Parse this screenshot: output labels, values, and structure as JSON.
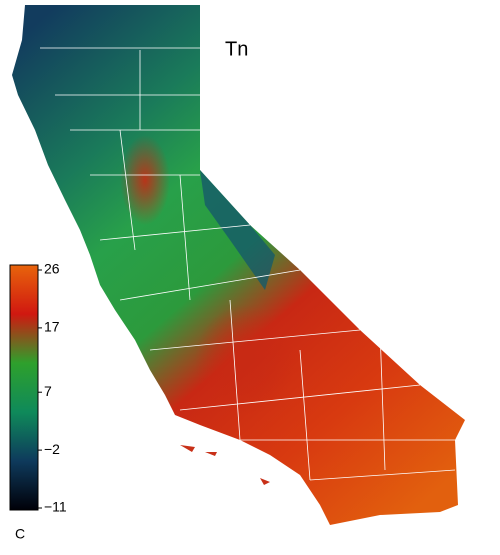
{
  "map": {
    "title": "Tn",
    "colorbar": {
      "unit": "C",
      "lim": [
        -11,
        26
      ],
      "ticks": [
        26,
        17,
        7,
        {
          "value": -2,
          "label": "−2"
        },
        {
          "value": -11,
          "label": "−11"
        }
      ],
      "colors": [
        "#000008",
        "#0e3a5c",
        "#0f8a5a",
        "#2ea02c",
        "#d01810",
        "#e8640c"
      ]
    }
  }
}
